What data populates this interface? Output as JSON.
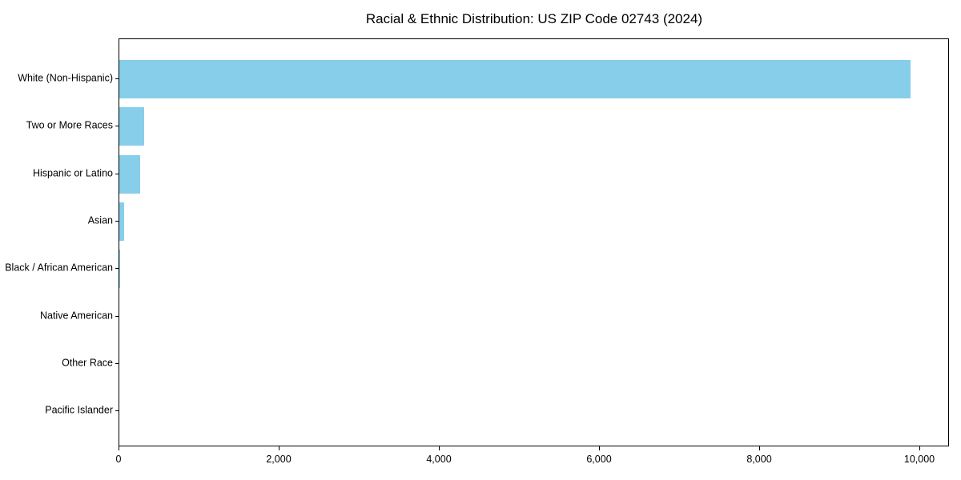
{
  "chart_data": {
    "type": "bar",
    "orientation": "horizontal",
    "title": "Racial & Ethnic Distribution: US ZIP Code 02743 (2024)",
    "categories": [
      "White (Non-Hispanic)",
      "Two or More Races",
      "Hispanic or Latino",
      "Asian",
      "Black / African American",
      "Native American",
      "Other Race",
      "Pacific Islander"
    ],
    "values": [
      9875,
      305,
      262,
      58,
      12,
      0,
      0,
      0
    ],
    "xlabel": "",
    "ylabel": "",
    "xlim": [
      0,
      10370
    ],
    "xticks": [
      0,
      2000,
      4000,
      6000,
      8000,
      10000
    ],
    "xtick_labels": [
      "0",
      "2,000",
      "4,000",
      "6,000",
      "8,000",
      "10,000"
    ],
    "bar_color": "#87CEEB",
    "background_color": "#ffffff",
    "spine_color": "#000000",
    "grid": false,
    "legend": null
  }
}
